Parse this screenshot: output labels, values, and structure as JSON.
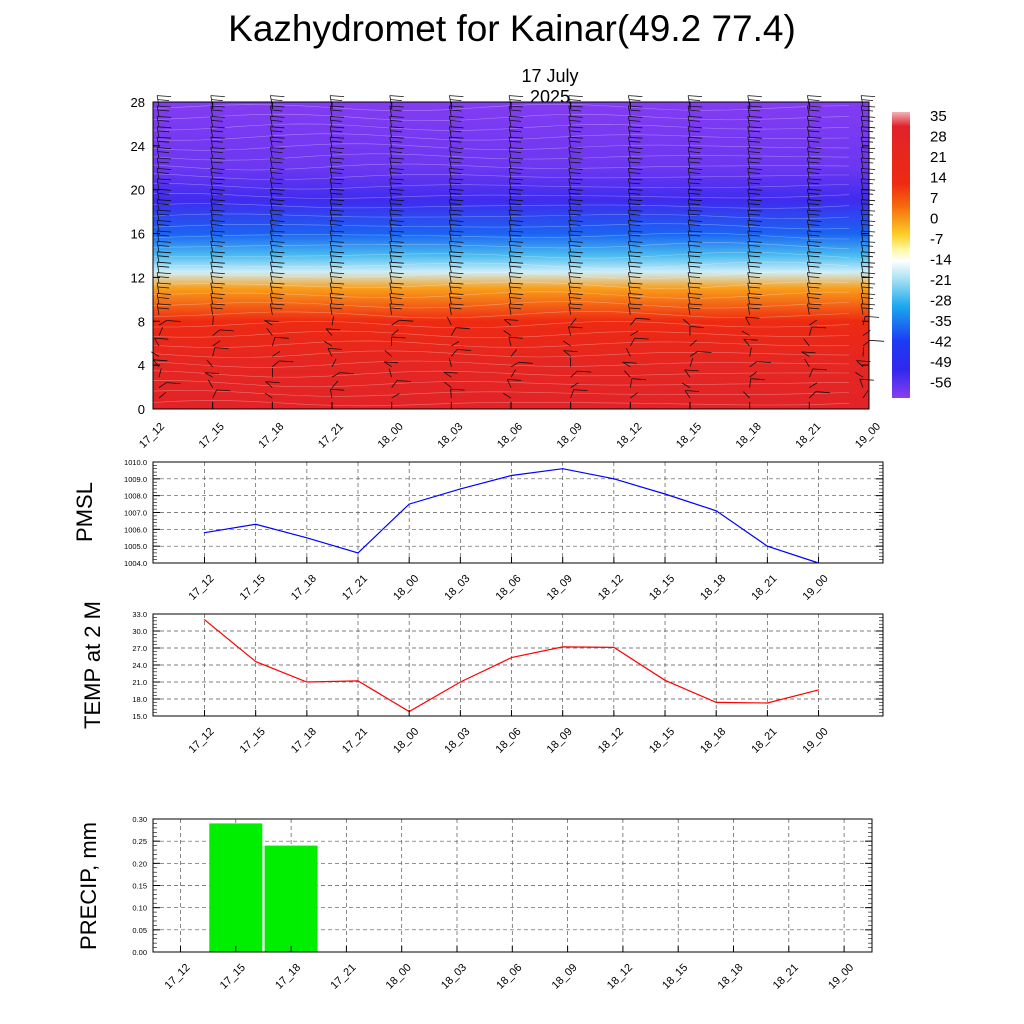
{
  "title": "Kazhydromet for Kainar(49.2 77.4)",
  "subtitle": "17 July 2025",
  "time_labels": [
    "17_12",
    "17_15",
    "17_18",
    "17_21",
    "18_00",
    "18_03",
    "18_06",
    "18_09",
    "18_12",
    "18_15",
    "18_18",
    "18_21",
    "19_00"
  ],
  "colors": {
    "pmsl_line": "#0000ff",
    "temp_line": "#ff0000",
    "precip_bar": "#00ee00"
  },
  "chart_data": [
    {
      "type": "heatmap",
      "description_text": "",
      "x": [
        "17_12",
        "17_15",
        "17_18",
        "17_21",
        "18_00",
        "18_03",
        "18_06",
        "18_09",
        "18_12",
        "18_15",
        "18_18",
        "18_21",
        "19_00"
      ],
      "ylim": [
        0,
        28
      ],
      "yticks": [
        0,
        4,
        8,
        12,
        16,
        20,
        24,
        28
      ],
      "colorbar_labels": [
        "35",
        "28",
        "21",
        "14",
        "7",
        "0",
        "-7",
        "-14",
        "-21",
        "-28",
        "-35",
        "-42",
        "-49",
        "-56"
      ],
      "temperature_profile": [
        {
          "height": 0,
          "value": 28
        },
        {
          "height": 4,
          "value": 24
        },
        {
          "height": 8,
          "value": 14
        },
        {
          "height": 11,
          "value": 4
        },
        {
          "height": 12.5,
          "value": -10
        },
        {
          "height": 14,
          "value": -18
        },
        {
          "height": 16,
          "value": -30
        },
        {
          "height": 19,
          "value": -48
        },
        {
          "height": 22,
          "value": -54
        },
        {
          "height": 28,
          "value": -57
        }
      ],
      "wind_barbs": true
    },
    {
      "type": "line",
      "ylabel": "PMSL",
      "x": [
        "17_12",
        "17_15",
        "17_18",
        "17_21",
        "18_00",
        "18_03",
        "18_06",
        "18_09",
        "18_12",
        "18_15",
        "18_18",
        "18_21",
        "19_00"
      ],
      "values": [
        1005.8,
        1006.3,
        1005.5,
        1004.6,
        1007.5,
        1008.4,
        1009.2,
        1009.6,
        1009.0,
        1008.1,
        1007.1,
        1005.0,
        1004.0
      ],
      "ylim": [
        1004.0,
        1010.0
      ],
      "yticks": [
        "1004.0",
        "1005.0",
        "1006.0",
        "1007.0",
        "1008.0",
        "1009.0",
        "1010.0"
      ]
    },
    {
      "type": "line",
      "ylabel": "TEMP at 2 M",
      "x": [
        "17_12",
        "17_15",
        "17_18",
        "17_21",
        "18_00",
        "18_03",
        "18_06",
        "18_09",
        "18_12",
        "18_15",
        "18_18",
        "18_21",
        "19_00"
      ],
      "values": [
        32.0,
        24.6,
        21.0,
        21.2,
        15.8,
        21.0,
        25.3,
        27.2,
        27.1,
        21.3,
        17.4,
        17.3,
        19.6
      ],
      "ylim": [
        15.0,
        33.0
      ],
      "yticks": [
        "15.0",
        "18.0",
        "21.0",
        "24.0",
        "27.0",
        "30.0",
        "33.0"
      ]
    },
    {
      "type": "bar",
      "ylabel": "PRECIP, mm",
      "categories": [
        "17_12",
        "17_15",
        "17_18",
        "17_21",
        "18_00",
        "18_03",
        "18_06",
        "18_09",
        "18_12",
        "18_15",
        "18_18",
        "18_21",
        "19_00"
      ],
      "values": [
        0,
        0.29,
        0.24,
        0,
        0,
        0,
        0,
        0,
        0,
        0,
        0,
        0,
        0
      ],
      "ylim": [
        0,
        0.3
      ],
      "yticks": [
        "0.00",
        "0.05",
        "0.10",
        "0.15",
        "0.20",
        "0.25",
        "0.30"
      ]
    }
  ]
}
